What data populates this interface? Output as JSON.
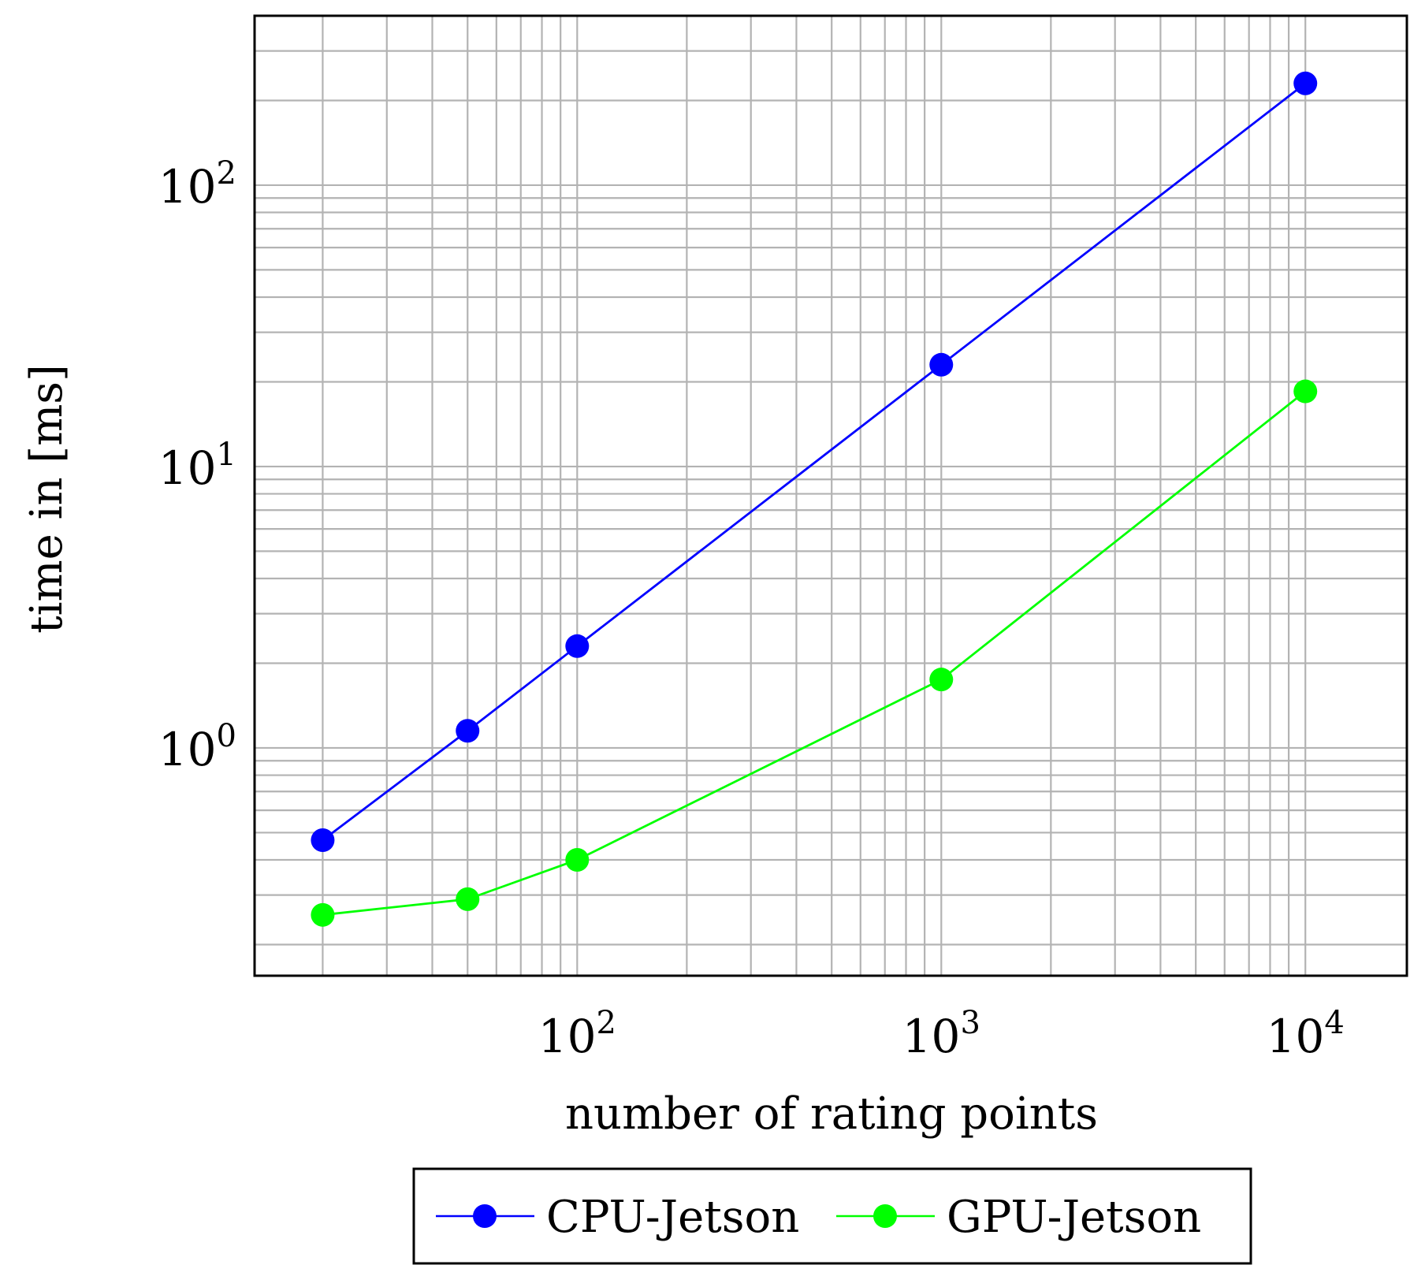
{
  "chart_data": {
    "type": "line",
    "xscale": "log",
    "yscale": "log",
    "xlabel": "number of rating points",
    "ylabel": "time in [ms]",
    "xlim": [
      13,
      19000
    ],
    "ylim": [
      0.155,
      400
    ],
    "grid": true,
    "x_ticks": [
      {
        "value": 100,
        "base": "10",
        "exp": "2"
      },
      {
        "value": 1000,
        "base": "10",
        "exp": "3"
      },
      {
        "value": 10000,
        "base": "10",
        "exp": "4"
      }
    ],
    "y_ticks": [
      {
        "value": 1,
        "base": "10",
        "exp": "0"
      },
      {
        "value": 10,
        "base": "10",
        "exp": "1"
      },
      {
        "value": 100,
        "base": "10",
        "exp": "2"
      }
    ],
    "x": [
      20,
      50,
      100,
      1000,
      10000
    ],
    "series": [
      {
        "name": "CPU-Jetson",
        "color": "#0000ff",
        "values": [
          0.47,
          1.15,
          2.3,
          23,
          230
        ]
      },
      {
        "name": "GPU-Jetson",
        "color": "#00ff00",
        "values": [
          0.255,
          0.29,
          0.4,
          1.75,
          18.5
        ]
      }
    ],
    "legend": "bottom-center"
  }
}
